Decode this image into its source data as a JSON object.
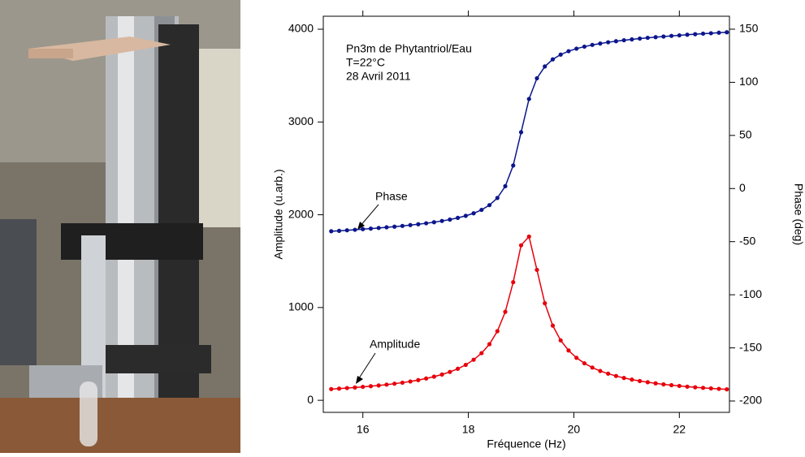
{
  "chart_data": {
    "type": "line",
    "x_label": "Fréquence (Hz)",
    "y_label": "Amplitude (u.arb.)",
    "y2_label": "Phase (deg)",
    "annotations": [
      "Pn3m de Phytantriol/Eau",
      "T=22°C",
      "28 Avril 2011"
    ],
    "x": [
      15.4,
      15.55,
      15.7,
      15.85,
      16.0,
      16.15,
      16.3,
      16.45,
      16.6,
      16.75,
      16.9,
      17.05,
      17.2,
      17.35,
      17.5,
      17.65,
      17.8,
      17.95,
      18.1,
      18.25,
      18.4,
      18.55,
      18.7,
      18.85,
      19.0,
      19.15,
      19.3,
      19.45,
      19.6,
      19.75,
      19.9,
      20.05,
      20.2,
      20.35,
      20.5,
      20.65,
      20.8,
      20.95,
      21.1,
      21.25,
      21.4,
      21.55,
      21.7,
      21.85,
      22.0,
      22.15,
      22.3,
      22.45,
      22.6,
      22.75,
      22.9
    ],
    "series": [
      {
        "name": "Amplitude",
        "color": "#e8000b",
        "axis": "y",
        "values": [
          121,
          126,
          132,
          138,
          145,
          152,
          160,
          169,
          179,
          190,
          203,
          218,
          235,
          255,
          278,
          306,
          340,
          382,
          437,
          508,
          605,
          745,
          954,
          1273,
          1671,
          1765,
          1406,
          1046,
          805,
          646,
          537,
          458,
          399,
          353,
          316,
          287,
          262,
          241,
          223,
          208,
          195,
          183,
          172,
          163,
          155,
          147,
          140,
          134,
          128,
          123,
          118
        ]
      },
      {
        "name": "Phase",
        "color": "#0b168c",
        "axis": "y2",
        "values": [
          -40.2,
          -39.8,
          -39.3,
          -38.8,
          -38.2,
          -37.7,
          -37.1,
          -36.5,
          -35.9,
          -35.2,
          -34.4,
          -33.6,
          -32.7,
          -31.7,
          -30.5,
          -29.2,
          -27.6,
          -25.7,
          -23.3,
          -20.1,
          -15.6,
          -8.9,
          2.2,
          21.7,
          53,
          84.3,
          103.8,
          114.9,
          121.6,
          126.1,
          129.3,
          131.7,
          133.6,
          135.2,
          136.5,
          137.7,
          138.7,
          139.6,
          140.4,
          141.2,
          141.9,
          142.5,
          143.1,
          143.7,
          144.2,
          144.8,
          145.3,
          145.8,
          146.2,
          146.7,
          147.1
        ]
      }
    ],
    "xlim": [
      15.25,
      22.95
    ],
    "xticks": [
      16,
      18,
      20,
      22
    ],
    "ylim": [
      -130,
      4140
    ],
    "yticks": [
      0,
      1000,
      2000,
      3000,
      4000
    ],
    "y2lim": [
      -210.7,
      162.2
    ],
    "y2ticks": [
      -200,
      -150,
      -100,
      -50,
      0,
      50,
      100,
      150
    ]
  }
}
